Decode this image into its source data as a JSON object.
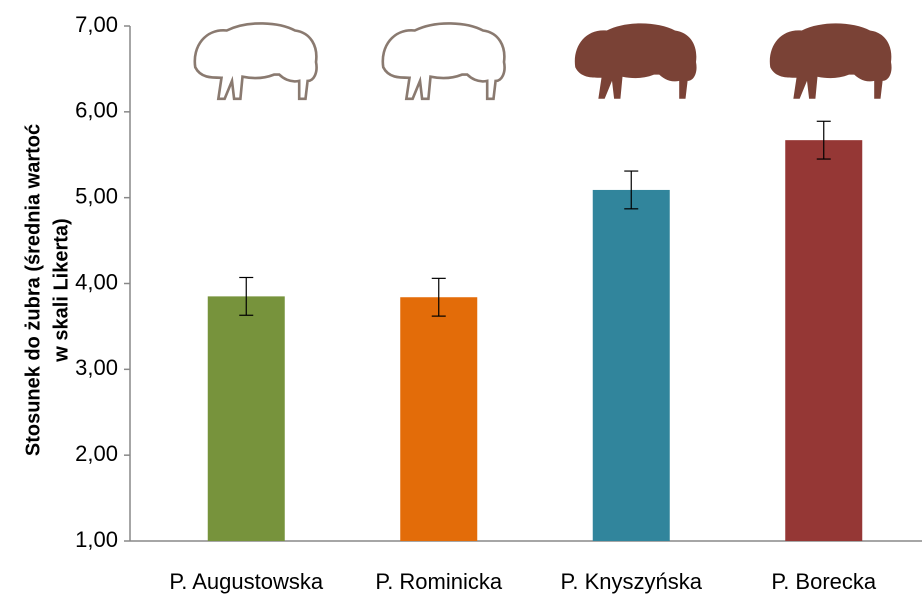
{
  "chart_data": {
    "type": "bar",
    "y_axis_label": [
      "Stosunek do żubra (średnia wartoć",
      "w skali Likerta)"
    ],
    "categories": [
      "P. Augustowska",
      "P. Rominicka",
      "P. Knyszyńska",
      "P. Borecka"
    ],
    "values": [
      3.85,
      3.84,
      5.09,
      5.67
    ],
    "errors": [
      0.22,
      0.22,
      0.22,
      0.22
    ],
    "colors": [
      "#77933c",
      "#e36c09",
      "#31859c",
      "#953735"
    ],
    "ylim": [
      1,
      7
    ],
    "yticks": [
      {
        "value": 1,
        "label": "1,00"
      },
      {
        "value": 2,
        "label": "2,00"
      },
      {
        "value": 3,
        "label": "3,00"
      },
      {
        "value": 4,
        "label": "4,00"
      },
      {
        "value": 5,
        "label": "5,00"
      },
      {
        "value": 6,
        "label": "6,00"
      },
      {
        "value": 7,
        "label": "7,00"
      }
    ]
  }
}
